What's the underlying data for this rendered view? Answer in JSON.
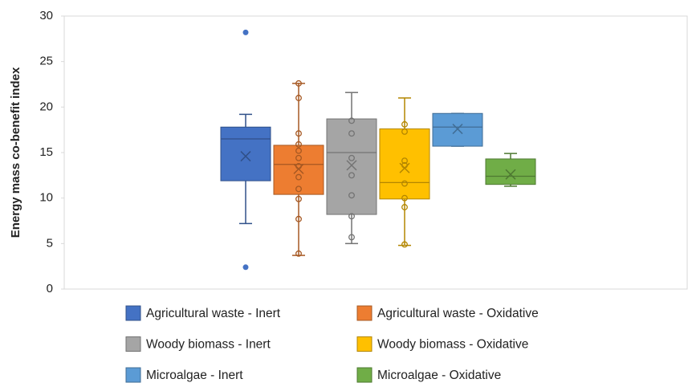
{
  "chart_data": {
    "type": "box",
    "y_label": "Energy mass co-benefit index",
    "ylim": [
      0,
      30
    ],
    "yticks": [
      0,
      5,
      10,
      15,
      20,
      25,
      30
    ],
    "series": [
      {
        "name": "Agricultural waste - Inert",
        "color": "#4472c4",
        "whisker_low": 7.2,
        "q1": 11.9,
        "median": 16.5,
        "q3": 17.8,
        "whisker_high": 19.2,
        "mean": 14.6,
        "points": [],
        "outliers": [
          28.2,
          2.4
        ]
      },
      {
        "name": "Agricultural waste - Oxidative",
        "color": "#ed7d31",
        "whisker_low": 3.7,
        "q1": 10.4,
        "median": 13.7,
        "q3": 15.8,
        "whisker_high": 22.6,
        "mean": 13.2,
        "points": [
          22.6,
          21.0,
          17.1,
          15.9,
          15.2,
          14.4,
          13.5,
          12.3,
          11.0,
          9.9,
          7.7,
          3.9
        ],
        "outliers": []
      },
      {
        "name": "Woody biomass - Inert",
        "color": "#a5a5a5",
        "whisker_low": 5.0,
        "q1": 8.2,
        "median": 15.0,
        "q3": 18.7,
        "whisker_high": 21.6,
        "mean": 13.6,
        "points": [
          18.5,
          17.1,
          14.4,
          12.5,
          10.3,
          8.0,
          5.7
        ],
        "outliers": []
      },
      {
        "name": "Woody biomass - Oxidative",
        "color": "#ffc000",
        "whisker_low": 4.8,
        "q1": 9.9,
        "median": 11.7,
        "q3": 17.6,
        "whisker_high": 21.0,
        "mean": 13.3,
        "points": [
          18.1,
          17.3,
          14.1,
          13.6,
          11.6,
          10.0,
          9.0,
          4.9
        ],
        "outliers": []
      },
      {
        "name": "Microalgae - Inert",
        "color": "#5b9bd5",
        "whisker_low": 15.7,
        "q1": 15.7,
        "median": 17.8,
        "q3": 19.3,
        "whisker_high": 19.3,
        "mean": 17.6,
        "points": [],
        "outliers": []
      },
      {
        "name": "Microalgae - Oxidative",
        "color": "#70ad47",
        "whisker_low": 11.3,
        "q1": 11.5,
        "median": 12.4,
        "q3": 14.3,
        "whisker_high": 14.9,
        "mean": 12.6,
        "points": [],
        "outliers": []
      }
    ]
  }
}
